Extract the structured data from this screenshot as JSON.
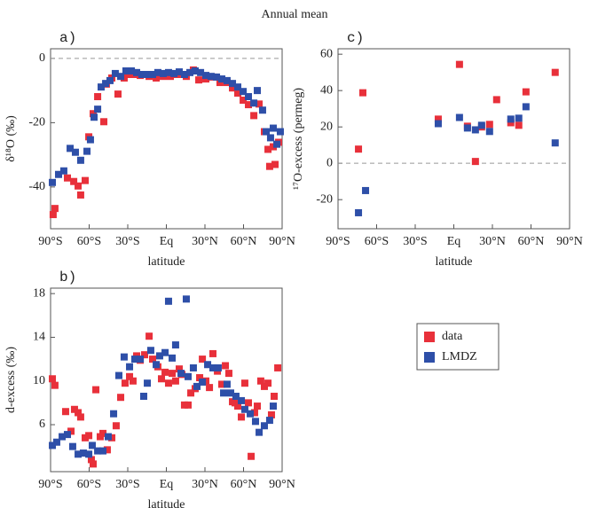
{
  "title": "Annual mean",
  "chart_data": [
    {
      "type": "scatter",
      "panel_label": "a)",
      "ylabel": "δ¹⁸O (‰)",
      "xlabel": "latitude",
      "xlim": [
        -90,
        90
      ],
      "ylim": [
        -53,
        3
      ],
      "zero_line": true,
      "xticks": [
        {
          "value": -90,
          "label": "90°S"
        },
        {
          "value": -60,
          "label": "60°S"
        },
        {
          "value": -30,
          "label": "30°S"
        },
        {
          "value": 0,
          "label": "Eq"
        },
        {
          "value": 30,
          "label": "30°N"
        },
        {
          "value": 60,
          "label": "60°N"
        },
        {
          "value": 90,
          "label": "90°N"
        }
      ],
      "yticks": [
        0,
        -20,
        -40
      ],
      "series": [
        {
          "color": "#e8303a",
          "x": [
            -88,
            -86.6,
            -76.9,
            -72,
            -68.6,
            -66.6,
            -63.1,
            -60.3,
            -56.9,
            -53.4,
            -48.6,
            -46.6,
            -42.4,
            -37.6,
            -32.8,
            -28.6,
            -24.5,
            -20.3,
            -13.4,
            -7.9,
            -2.4,
            3.1,
            8.6,
            15.5,
            21,
            25.2,
            30.7,
            36.2,
            41.7,
            47.2,
            51.4,
            55.5,
            59.7,
            63.8,
            68,
            72.1,
            76.2,
            79,
            80.3,
            84.5,
            83.1,
            87.2
          ],
          "values": [
            -48.6,
            -46.7,
            -37.2,
            -38.3,
            -39.7,
            -42.5,
            -38,
            -24.4,
            -17.2,
            -11.9,
            -19.7,
            -8,
            -6.1,
            -11.1,
            -6.1,
            -5,
            -5,
            -5.3,
            -5.6,
            -6.1,
            -5.6,
            -5.6,
            -5,
            -5.6,
            -3.6,
            -6.7,
            -6.4,
            -5.8,
            -7.5,
            -7.5,
            -9.2,
            -10.8,
            -13,
            -14.4,
            -17.8,
            -14.2,
            -22.8,
            -28.3,
            -33.6,
            -33,
            -27.5,
            -26.1
          ]
        },
        {
          "color": "#2e4fa8",
          "x": [
            -88.6,
            -83.8,
            -79.7,
            -74.8,
            -70.7,
            -66.6,
            -61.7,
            -59,
            -56.2,
            -53.4,
            -50.7,
            -47.2,
            -43.8,
            -39.7,
            -35.5,
            -31.4,
            -27.2,
            -23.1,
            -19,
            -14.8,
            -10.7,
            -6.6,
            -2.4,
            1.7,
            5.9,
            10,
            14.1,
            18.3,
            22.4,
            26.6,
            30.7,
            34.8,
            39,
            43.1,
            47.2,
            51.4,
            55.5,
            59.7,
            63.8,
            68,
            70.7,
            74.8,
            77.6,
            81,
            83.1,
            85.9,
            88.6
          ],
          "values": [
            -38.6,
            -36.1,
            -35,
            -28,
            -29.2,
            -31.7,
            -28.9,
            -25.3,
            -18.3,
            -15.8,
            -8.9,
            -7.8,
            -6.9,
            -4.7,
            -5.6,
            -3.9,
            -3.9,
            -4.4,
            -5,
            -5,
            -5,
            -4.4,
            -4.7,
            -4.4,
            -4.7,
            -4.2,
            -5,
            -4.4,
            -3.9,
            -4.4,
            -5.3,
            -5.6,
            -5.8,
            -6.4,
            -6.9,
            -7.8,
            -8.9,
            -10.3,
            -11.9,
            -13.9,
            -10,
            -16.1,
            -22.8,
            -24.7,
            -21.7,
            -26.7,
            -22.8
          ]
        }
      ]
    },
    {
      "type": "scatter",
      "panel_label": "b)",
      "ylabel": "d-excess (‰)",
      "xlabel": "latitude",
      "xlim": [
        -90,
        90
      ],
      "ylim": [
        1.7,
        18.5
      ],
      "zero_line": false,
      "legend": "right",
      "xticks": [
        {
          "value": -90,
          "label": "90°S"
        },
        {
          "value": -60,
          "label": "60°S"
        },
        {
          "value": -30,
          "label": "30°S"
        },
        {
          "value": 0,
          "label": "Eq"
        },
        {
          "value": 30,
          "label": "30°N"
        },
        {
          "value": 60,
          "label": "60°N"
        },
        {
          "value": 90,
          "label": "90°N"
        }
      ],
      "yticks": [
        6,
        10,
        14,
        18
      ],
      "series": [
        {
          "name": "data",
          "color": "#e8303a",
          "x": [
            -88.6,
            -86.6,
            -78.3,
            -74.1,
            -71.4,
            -68.6,
            -66.6,
            -63.1,
            -60.3,
            -58.3,
            -56.9,
            -54.8,
            -51.4,
            -49.3,
            -45.9,
            -42.4,
            -39,
            -35.5,
            -32.1,
            -28.6,
            -25.9,
            -23.1,
            -20.3,
            -16.9,
            -13.4,
            -10.7,
            -6.6,
            -3.8,
            -1,
            1.7,
            4.5,
            7.2,
            10,
            12.1,
            14.1,
            16.9,
            19,
            22.4,
            25.9,
            28,
            30.7,
            33.5,
            36.2,
            39.7,
            43.1,
            45.9,
            48.6,
            51.4,
            53.4,
            55.5,
            58.3,
            61,
            63.8,
            65.9,
            68.6,
            70.7,
            73.4,
            76.2,
            79,
            81.7,
            83.8,
            86.6
          ],
          "values": [
            10.2,
            9.6,
            7.2,
            5.4,
            7.4,
            7.1,
            6.7,
            4.8,
            5,
            2.8,
            2.4,
            9.2,
            4.9,
            5.2,
            3.7,
            4.8,
            5.9,
            8.5,
            9.8,
            10.4,
            10,
            12.3,
            11.9,
            12.4,
            14.1,
            12,
            11.3,
            10.2,
            10.8,
            9.8,
            10.7,
            10,
            11.1,
            10.6,
            7.8,
            7.8,
            8.9,
            9.3,
            10.3,
            12,
            10,
            9.4,
            12.5,
            10.9,
            9.7,
            11.4,
            10.7,
            8.1,
            8,
            7.7,
            6.7,
            9.8,
            8,
            3.1,
            7.1,
            7.7,
            10,
            9.5,
            9.8,
            6.9,
            8.6,
            11.2
          ]
        },
        {
          "name": "LMDZ",
          "color": "#2e4fa8",
          "x": [
            -88.6,
            -85.2,
            -81,
            -76.9,
            -72.8,
            -68.6,
            -64.5,
            -60.3,
            -57.6,
            -53.4,
            -49.3,
            -45.2,
            -41,
            -36.9,
            -32.8,
            -28.6,
            -24.5,
            -20.3,
            -17.6,
            -14.8,
            -12.1,
            -7.9,
            -5.2,
            -1,
            1.7,
            4.5,
            7.2,
            11.4,
            15.5,
            16.9,
            21,
            23.8,
            28,
            32.1,
            36.2,
            40.3,
            44.5,
            47.2,
            50,
            54.1,
            58.3,
            61,
            65.2,
            69.3,
            72.1,
            76.2,
            80.3,
            83.1
          ],
          "values": [
            4.1,
            4.4,
            4.9,
            5.1,
            4,
            3.3,
            3.4,
            3.3,
            4.1,
            3.6,
            3.6,
            4.9,
            7,
            10.5,
            12.2,
            11.3,
            12,
            12,
            8.6,
            9.8,
            12.8,
            11.5,
            12.3,
            12.6,
            17.3,
            12.1,
            13.3,
            10.7,
            17.5,
            10.4,
            11.2,
            9.5,
            9.9,
            11.5,
            11.2,
            11.2,
            8.9,
            9.7,
            8.9,
            8.6,
            8.2,
            7.4,
            7,
            6.3,
            5.3,
            5.9,
            6.4,
            7.7
          ]
        }
      ]
    },
    {
      "type": "scatter",
      "panel_label": "c)",
      "ylabel": "¹⁷O-excess (permeg)",
      "xlabel": "latitude",
      "xlim": [
        -90,
        90
      ],
      "ylim": [
        -36,
        63
      ],
      "zero_line": true,
      "xticks": [
        {
          "value": -90,
          "label": "90°S"
        },
        {
          "value": -60,
          "label": "60°S"
        },
        {
          "value": -30,
          "label": "30°S"
        },
        {
          "value": 0,
          "label": "Eq"
        },
        {
          "value": 30,
          "label": "30°N"
        },
        {
          "value": 60,
          "label": "60°N"
        },
        {
          "value": 90,
          "label": "90°N"
        }
      ],
      "yticks": [
        -20,
        0,
        20,
        40,
        60
      ],
      "series": [
        {
          "color": "#e8303a",
          "x": [
            -74.1,
            -70.7,
            -12.1,
            4.4,
            10.6,
            16.8,
            21.6,
            27.8,
            33.3,
            44.3,
            50.5,
            56.1,
            78.8
          ],
          "values": [
            7.8,
            38.8,
            24.3,
            54.4,
            20.4,
            1,
            20,
            21.4,
            35,
            22.3,
            20.9,
            39.3,
            50
          ]
        },
        {
          "color": "#2e4fa8",
          "x": [
            -74.1,
            -68.6,
            -12.1,
            4.4,
            10.6,
            16.8,
            21.6,
            27.8,
            44.3,
            50.5,
            56.1,
            78.8
          ],
          "values": [
            -27.2,
            -15,
            21.8,
            25.2,
            19.4,
            18.4,
            20.9,
            17.5,
            24.3,
            24.8,
            31.1,
            11.2
          ]
        }
      ]
    }
  ]
}
